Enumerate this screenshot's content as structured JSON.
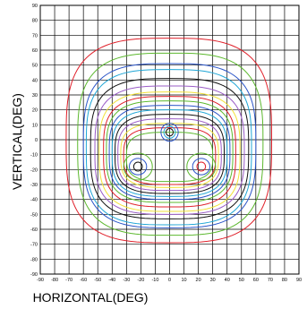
{
  "chart_data": {
    "type": "contour",
    "title": "",
    "xlabel": "HORIZONTAL(DEG)",
    "ylabel": "VERTICAL(DEG)",
    "xlim": [
      -90,
      90
    ],
    "ylim": [
      -90,
      90
    ],
    "x_ticks": [
      "-90",
      "-80",
      "-70",
      "-60",
      "-50",
      "-40",
      "-30",
      "-20",
      "-10",
      "0",
      "10",
      "20",
      "30",
      "40",
      "50",
      "60",
      "70",
      "80",
      "90"
    ],
    "y_ticks": [
      "90",
      "80",
      "70",
      "60",
      "50",
      "40",
      "30",
      "20",
      "10",
      "0",
      "-10",
      "-20",
      "-30",
      "-40",
      "-50",
      "-60",
      "-70",
      "-80",
      "-90"
    ],
    "grid": true,
    "contours": [
      {
        "color": "#e0202a",
        "x_extent": [
          -72,
          71
        ],
        "y_extent": [
          -69,
          68
        ]
      },
      {
        "color": "#5cb82e",
        "x_extent": [
          -64,
          65
        ],
        "y_extent": [
          -64,
          58
        ]
      },
      {
        "color": "#2a54c8",
        "x_extent": [
          -60,
          60
        ],
        "y_extent": [
          -59,
          51
        ]
      },
      {
        "color": "#1fa6d6",
        "x_extent": [
          -58,
          57
        ],
        "y_extent": [
          -57,
          47
        ]
      },
      {
        "color": "#101010",
        "x_extent": [
          -55,
          55
        ],
        "y_extent": [
          -53,
          41
        ]
      },
      {
        "color": "#9a5cc6",
        "x_extent": [
          -52,
          52
        ],
        "y_extent": [
          -50,
          36
        ]
      },
      {
        "color": "#f2e23a",
        "x_extent": [
          -49,
          49
        ],
        "y_extent": [
          -48,
          32
        ]
      },
      {
        "color": "#e0202a",
        "x_extent": [
          -46,
          46
        ],
        "y_extent": [
          -45,
          29
        ]
      },
      {
        "color": "#5cb82e",
        "x_extent": [
          -44,
          44
        ],
        "y_extent": [
          -42,
          26
        ]
      },
      {
        "color": "#2a54c8",
        "x_extent": [
          -42,
          42
        ],
        "y_extent": [
          -40,
          23
        ]
      },
      {
        "color": "#1fa6d6",
        "x_extent": [
          -40,
          40
        ],
        "y_extent": [
          -38,
          20
        ]
      },
      {
        "color": "#101010",
        "x_extent": [
          -38,
          38
        ],
        "y_extent": [
          -36,
          17
        ]
      },
      {
        "color": "#9a5cc6",
        "x_extent": [
          -36,
          36
        ],
        "y_extent": [
          -34,
          14
        ]
      },
      {
        "color": "#f2e23a",
        "x_extent": [
          -34,
          34
        ],
        "y_extent": [
          -32,
          11
        ]
      },
      {
        "color": "#e0202a",
        "x_extent": [
          -32,
          32
        ],
        "y_extent": [
          -30,
          8
        ]
      },
      {
        "color": "#5cb82e",
        "x_extent": [
          -30,
          30
        ],
        "y_extent": [
          -28,
          5
        ]
      }
    ],
    "islands": [
      {
        "color": "#2a54c8",
        "cx": 0,
        "cy": 5,
        "rx": 6,
        "ry": 6
      },
      {
        "color": "#1fa6d6",
        "cx": 0,
        "cy": 5,
        "rx": 4,
        "ry": 4
      },
      {
        "color": "#101010",
        "cx": 0,
        "cy": 5,
        "rx": 2.5,
        "ry": 2.5
      },
      {
        "color": "#5cb82e",
        "cx": -22,
        "cy": -18,
        "rx": 10,
        "ry": 9
      },
      {
        "color": "#2a54c8",
        "cx": -22,
        "cy": -18,
        "rx": 6,
        "ry": 5.5
      },
      {
        "color": "#101010",
        "cx": -22,
        "cy": -18,
        "rx": 3,
        "ry": 3
      },
      {
        "color": "#5cb82e",
        "cx": 22,
        "cy": -18,
        "rx": 10,
        "ry": 9
      },
      {
        "color": "#2a54c8",
        "cx": 22,
        "cy": -18,
        "rx": 6,
        "ry": 5.5
      },
      {
        "color": "#e0202a",
        "cx": 22,
        "cy": -18,
        "rx": 3,
        "ry": 3
      }
    ]
  }
}
